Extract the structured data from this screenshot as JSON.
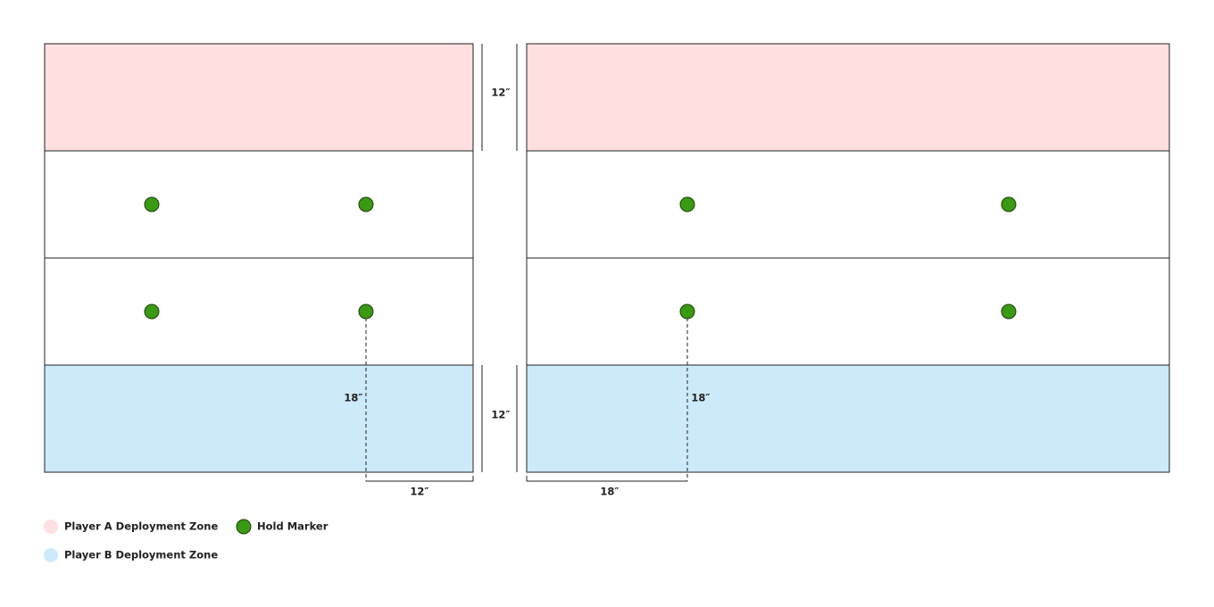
{
  "measurements": {
    "top_zone_depth": "12″",
    "bottom_zone_depth": "12″",
    "left_marker_vertical": "18″",
    "left_marker_horizontal": "12″",
    "right_marker_vertical": "18″",
    "right_marker_horizontal": "18″"
  },
  "legend": [
    {
      "label": "Player A Deployment Zone"
    },
    {
      "label": "Hold Marker"
    },
    {
      "label": "Player B Deployment Zone"
    }
  ]
}
